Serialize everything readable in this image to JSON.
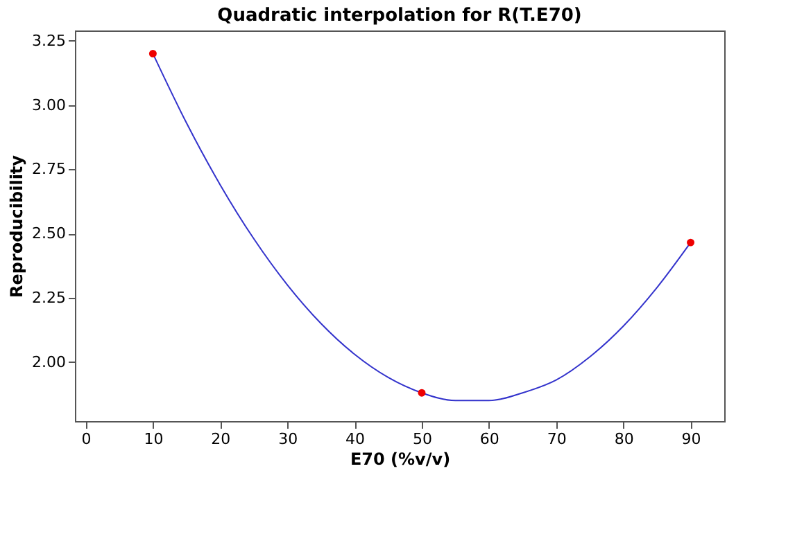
{
  "chart_data": {
    "type": "line",
    "title": "Quadratic interpolation for R(T.E70)",
    "xlabel": "E70 (%v/v)",
    "ylabel": "Reproducibility",
    "xlim": [
      -1.6,
      95
    ],
    "ylim": [
      1.77,
      3.29
    ],
    "xticks": [
      0,
      10,
      20,
      30,
      40,
      50,
      60,
      70,
      80,
      90
    ],
    "yticks": [
      {
        "value": 2,
        "label": "2.00"
      },
      {
        "value": 2.25,
        "label": "2.25"
      },
      {
        "value": 2.5,
        "label": "2.50"
      },
      {
        "value": 2.75,
        "label": "2.75"
      },
      {
        "value": 3,
        "label": "3.00"
      },
      {
        "value": 3.25,
        "label": "3.25"
      }
    ],
    "grid": false,
    "series": [
      {
        "type": "line",
        "color": "#3333cc",
        "marker": "none",
        "line_style": "solid",
        "x": [
          10,
          15,
          20,
          25,
          30,
          35,
          40,
          45,
          50,
          55,
          60,
          65,
          70,
          75,
          80,
          85,
          90
        ],
        "values": [
          3.2,
          2.93,
          2.69,
          2.48,
          2.3,
          2.15,
          2.03,
          1.94,
          1.88,
          1.85,
          1.85,
          1.88,
          1.93,
          2.02,
          2.14,
          2.29,
          2.465
        ]
      },
      {
        "type": "scatter",
        "color": "#ee0000",
        "marker": "circle",
        "x": [
          10,
          50,
          90
        ],
        "values": [
          3.2,
          1.88,
          2.465
        ]
      }
    ]
  }
}
